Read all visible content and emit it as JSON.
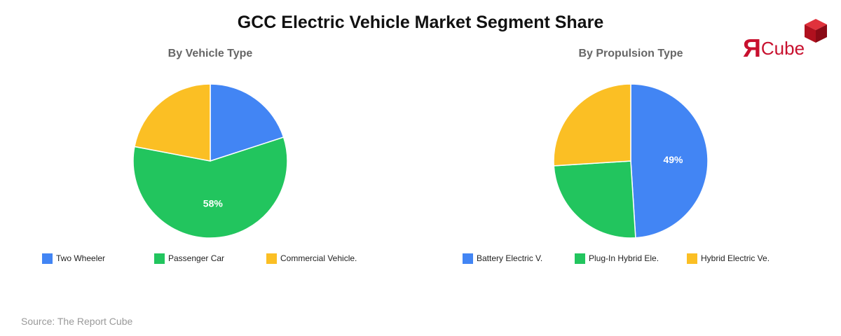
{
  "title": "GCC Electric Vehicle Market Segment Share",
  "source": "Source: The Report Cube",
  "logo": {
    "mark": "Я",
    "text": "Cube",
    "color": "#c8102e"
  },
  "chart_data": [
    {
      "type": "pie",
      "title": "By Vehicle Type",
      "categories": [
        "Two Wheeler",
        "Passenger Car",
        "Commercial Vehicle."
      ],
      "values": [
        20,
        58,
        22
      ],
      "colors": [
        "#4285f4",
        "#22c55e",
        "#fbbf24"
      ],
      "data_labels": [
        "",
        "58%",
        ""
      ],
      "legend": "bottom"
    },
    {
      "type": "pie",
      "title": "By Propulsion Type",
      "categories": [
        "Battery Electric V.",
        "Plug-In Hybrid Ele.",
        "Hybrid Electric Ve."
      ],
      "values": [
        49,
        25,
        26
      ],
      "colors": [
        "#4285f4",
        "#22c55e",
        "#fbbf24"
      ],
      "data_labels": [
        "49%",
        "",
        ""
      ],
      "legend": "bottom"
    }
  ]
}
